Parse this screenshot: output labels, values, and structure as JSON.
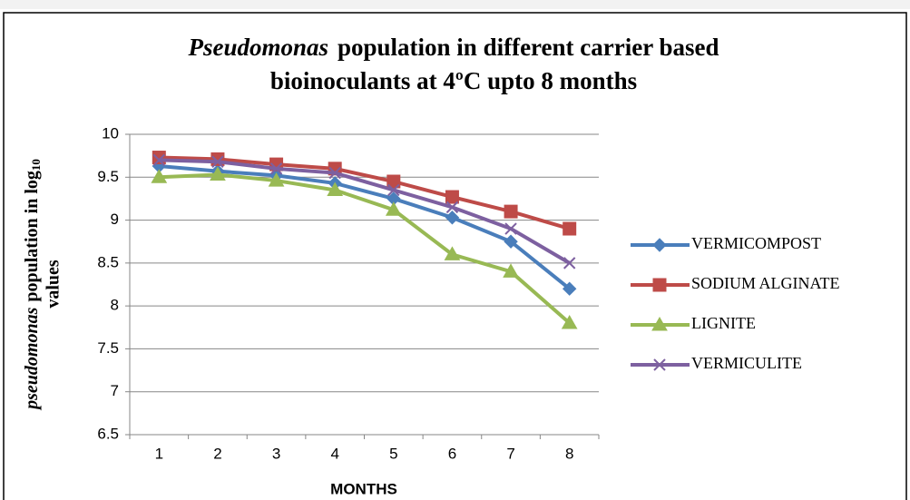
{
  "chart_data": {
    "type": "line",
    "title": {
      "italic": "Pseudomonas",
      "line1": "population in different carrier based",
      "line2": "bioinoculants at 4ºC upto 8 months"
    },
    "y_label": {
      "italic": "pseudomonas",
      "main": "population in log",
      "sub": "10",
      "line2": "values"
    },
    "x_label": "MONTHS",
    "categories": [
      1,
      2,
      3,
      4,
      5,
      6,
      7,
      8
    ],
    "series": [
      {
        "name": "VERMICOMPOST",
        "color": "#4a7ebb",
        "marker": "diamond",
        "values": [
          9.63,
          9.57,
          9.52,
          9.43,
          9.25,
          9.03,
          8.75,
          8.2
        ]
      },
      {
        "name": "SODIUM ALGINATE",
        "color": "#be4b48",
        "marker": "square",
        "values": [
          9.73,
          9.71,
          9.65,
          9.6,
          9.45,
          9.27,
          9.1,
          8.9
        ]
      },
      {
        "name": "LIGNITE",
        "color": "#98b954",
        "marker": "triangle",
        "values": [
          9.5,
          9.53,
          9.46,
          9.35,
          9.12,
          8.6,
          8.4,
          7.8
        ]
      },
      {
        "name": "VERMICULITE",
        "color": "#7d60a0",
        "marker": "x",
        "values": [
          9.7,
          9.68,
          9.6,
          9.55,
          9.35,
          9.15,
          8.9,
          8.5
        ]
      }
    ],
    "ylim": [
      6.5,
      10
    ],
    "yticks": [
      6.5,
      7,
      7.5,
      8,
      8.5,
      9,
      9.5,
      10
    ],
    "grid": true,
    "legend": "right"
  }
}
